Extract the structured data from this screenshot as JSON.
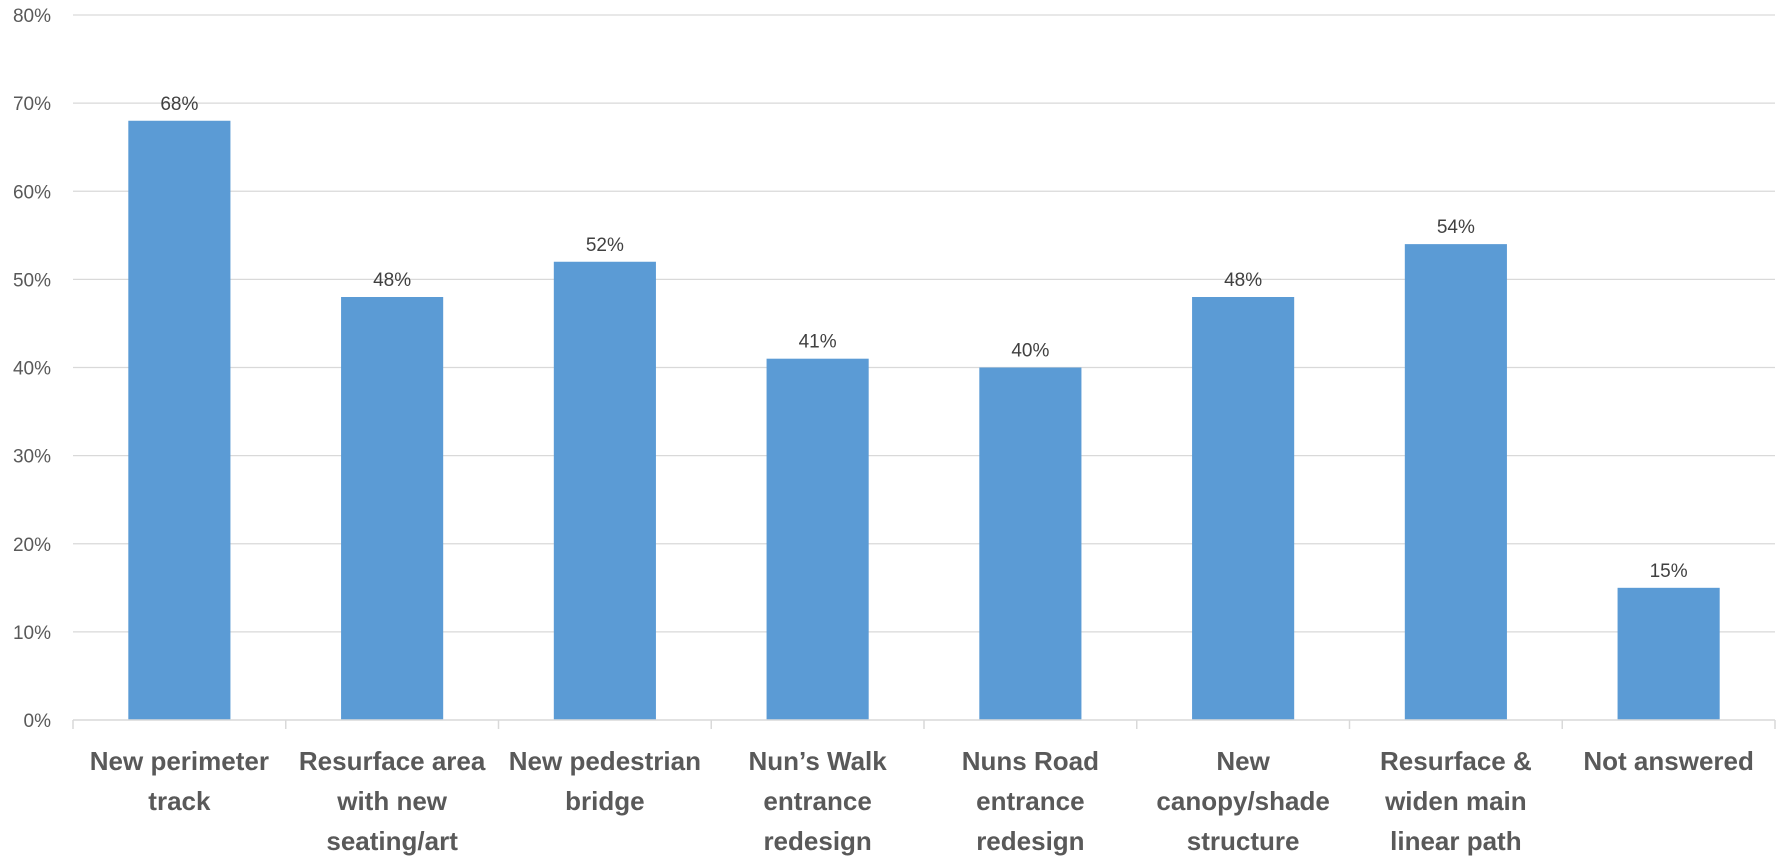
{
  "chart_data": {
    "type": "bar",
    "title": "",
    "xlabel": "",
    "ylabel": "",
    "categories": [
      [
        "New perimeter",
        "track"
      ],
      [
        "Resurface area",
        "with new",
        "seating/art"
      ],
      [
        "New pedestrian",
        "bridge"
      ],
      [
        "Nun’s Walk",
        "entrance",
        "redesign"
      ],
      [
        "Nuns Road",
        "entrance",
        "redesign"
      ],
      [
        "New",
        "canopy/shade",
        "structure"
      ],
      [
        "Resurface &",
        "widen main",
        "linear path"
      ],
      [
        "Not answered"
      ]
    ],
    "values": [
      68,
      48,
      52,
      41,
      40,
      48,
      54,
      15
    ],
    "value_labels": [
      "68%",
      "48%",
      "52%",
      "41%",
      "40%",
      "48%",
      "54%",
      "15%"
    ],
    "ylim": [
      0,
      80
    ],
    "y_ticks": [
      0,
      10,
      20,
      30,
      40,
      50,
      60,
      70,
      80
    ],
    "y_tick_labels": [
      "0%",
      "10%",
      "20%",
      "30%",
      "40%",
      "50%",
      "60%",
      "70%",
      "80%"
    ],
    "grid": true,
    "legend": "none",
    "bar_color": "#5b9bd5"
  }
}
